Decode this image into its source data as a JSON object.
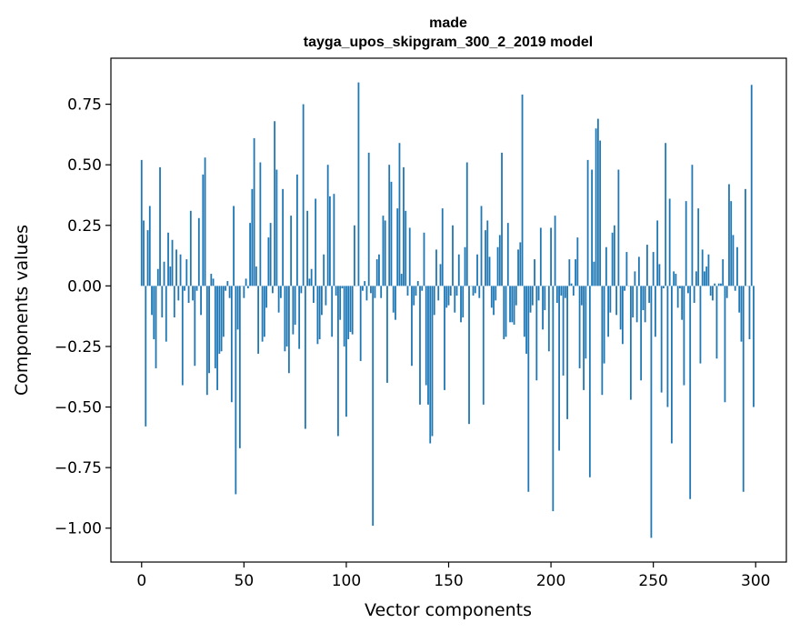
{
  "chart_data": {
    "type": "bar",
    "title": "made",
    "subtitle": "tayga_upos_skipgram_300_2_2019 model",
    "xlabel": "Vector components",
    "ylabel": "Components values",
    "xlim": [
      -15,
      315
    ],
    "ylim": [
      -1.14,
      0.94
    ],
    "x_ticks": [
      0,
      50,
      100,
      150,
      200,
      250,
      300
    ],
    "x_tick_labels": [
      "0",
      "50",
      "100",
      "150",
      "200",
      "250",
      "300"
    ],
    "y_ticks": [
      -1.0,
      -0.75,
      -0.5,
      -0.25,
      0.0,
      0.25,
      0.5,
      0.75
    ],
    "y_tick_labels": [
      "−1.00",
      "−0.75",
      "−0.50",
      "−0.25",
      "0.00",
      "0.25",
      "0.50",
      "0.75"
    ],
    "bar_color": "#1f77b4",
    "grid": false,
    "values": [
      0.52,
      0.27,
      -0.58,
      0.23,
      0.33,
      -0.12,
      -0.22,
      -0.34,
      0.07,
      0.49,
      -0.13,
      0.1,
      -0.23,
      0.22,
      0.08,
      0.19,
      -0.13,
      0.15,
      -0.06,
      0.13,
      -0.41,
      -0.02,
      0.11,
      -0.07,
      0.31,
      -0.06,
      -0.33,
      -0.02,
      0.28,
      -0.12,
      0.46,
      0.53,
      -0.45,
      -0.36,
      0.05,
      0.03,
      -0.34,
      -0.43,
      -0.28,
      -0.27,
      -0.21,
      -0.02,
      0.02,
      -0.05,
      -0.48,
      0.33,
      -0.86,
      -0.18,
      -0.67,
      0.0,
      -0.05,
      0.03,
      -0.01,
      0.26,
      0.4,
      0.61,
      0.08,
      -0.28,
      0.51,
      -0.23,
      -0.21,
      -0.09,
      0.2,
      0.26,
      -0.03,
      0.68,
      0.48,
      -0.11,
      -0.05,
      0.4,
      -0.27,
      -0.25,
      -0.36,
      0.29,
      -0.2,
      -0.16,
      0.46,
      -0.26,
      -0.03,
      0.75,
      -0.59,
      0.31,
      0.03,
      0.07,
      -0.07,
      0.36,
      -0.24,
      -0.22,
      -0.12,
      0.13,
      -0.08,
      0.5,
      0.37,
      -0.21,
      0.38,
      -0.04,
      -0.62,
      -0.14,
      -0.01,
      -0.25,
      -0.54,
      -0.22,
      -0.19,
      -0.2,
      0.25,
      0.0,
      0.84,
      -0.31,
      -0.02,
      0.02,
      -0.06,
      0.55,
      -0.03,
      -0.99,
      -0.05,
      0.11,
      0.13,
      -0.05,
      0.29,
      0.27,
      -0.4,
      0.5,
      0.43,
      -0.11,
      -0.14,
      0.32,
      0.59,
      0.05,
      0.49,
      0.31,
      -0.04,
      0.24,
      -0.33,
      -0.08,
      -0.04,
      0.02,
      -0.49,
      -0.02,
      0.22,
      -0.41,
      -0.49,
      -0.65,
      -0.62,
      -0.12,
      0.15,
      -0.06,
      0.09,
      0.32,
      -0.43,
      -0.09,
      -0.08,
      -0.04,
      0.25,
      -0.11,
      -0.04,
      0.13,
      -0.15,
      -0.13,
      0.16,
      0.51,
      -0.57,
      0.0,
      -0.04,
      -0.03,
      0.13,
      -0.05,
      0.33,
      -0.49,
      0.23,
      0.27,
      0.12,
      -0.09,
      -0.12,
      -0.06,
      0.16,
      0.21,
      0.55,
      -0.22,
      -0.21,
      0.26,
      -0.15,
      -0.15,
      -0.16,
      -0.08,
      0.15,
      0.18,
      0.79,
      -0.21,
      -0.28,
      -0.85,
      -0.11,
      -0.08,
      0.11,
      -0.39,
      -0.06,
      0.24,
      -0.18,
      -0.1,
      0.0,
      -0.27,
      0.24,
      -0.93,
      0.29,
      -0.07,
      -0.68,
      -0.04,
      -0.37,
      -0.05,
      -0.55,
      0.11,
      0.01,
      -0.04,
      0.11,
      0.2,
      -0.34,
      -0.08,
      -0.43,
      -0.3,
      0.52,
      -0.79,
      0.48,
      0.1,
      0.65,
      0.69,
      0.6,
      -0.45,
      -0.32,
      0.16,
      -0.21,
      -0.11,
      0.22,
      0.25,
      -0.12,
      0.48,
      -0.18,
      -0.24,
      -0.02,
      0.14,
      0.0,
      -0.47,
      -0.13,
      0.06,
      -0.15,
      0.12,
      -0.39,
      -0.1,
      -0.15,
      0.17,
      -0.07,
      -1.04,
      0.14,
      -0.21,
      0.27,
      0.09,
      -0.44,
      -0.01,
      0.59,
      -0.5,
      0.36,
      -0.65,
      0.06,
      0.05,
      -0.09,
      -0.01,
      -0.14,
      -0.41,
      0.35,
      -0.03,
      -0.88,
      0.5,
      -0.07,
      0.06,
      0.32,
      -0.32,
      0.15,
      0.06,
      0.08,
      0.13,
      -0.04,
      -0.06,
      0.01,
      -0.3,
      0.01,
      0.01,
      0.11,
      -0.48,
      -0.05,
      0.42,
      0.35,
      0.21,
      -0.02,
      0.16,
      -0.11,
      -0.23,
      -0.85,
      0.4,
      0.0,
      -0.22,
      0.83,
      -0.5
    ]
  }
}
